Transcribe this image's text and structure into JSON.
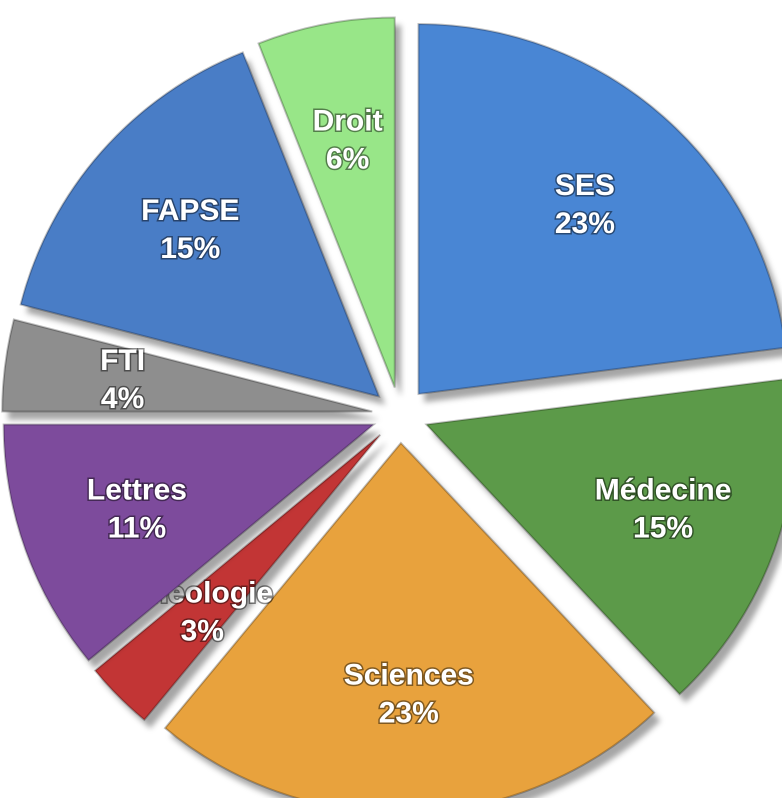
{
  "chart_data": {
    "type": "pie",
    "categories": [
      "SES",
      "Médecine",
      "Sciences",
      "Théologie",
      "Lettres",
      "FTI",
      "FAPSE",
      "Droit"
    ],
    "values": [
      23,
      15,
      23,
      3,
      11,
      4,
      15,
      6
    ],
    "value_labels": [
      "23%",
      "15%",
      "23%",
      "3%",
      "11%",
      "4%",
      "15%",
      "6%"
    ],
    "colors": [
      "#4a86d4",
      "#5c9a48",
      "#e8a23e",
      "#c23434",
      "#7d4c9c",
      "#8e8e8e",
      "#4a7dc6",
      "#98e688"
    ]
  }
}
